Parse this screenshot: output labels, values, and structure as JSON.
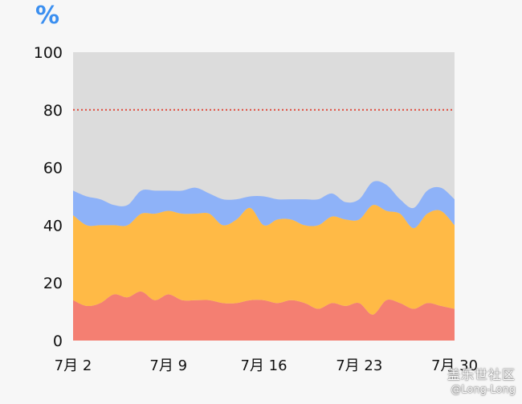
{
  "chart_data": {
    "type": "area",
    "stacked": true,
    "unit": "%",
    "ylim": [
      0,
      100
    ],
    "yticks": [
      0,
      20,
      40,
      60,
      80,
      100
    ],
    "x_tick_labels": [
      "7月 2",
      "7月 9",
      "7月 16",
      "7月 23",
      "7月 30"
    ],
    "x_tick_days": [
      2,
      9,
      16,
      23,
      30
    ],
    "x": [
      2,
      3,
      4,
      5,
      6,
      7,
      8,
      9,
      10,
      11,
      12,
      13,
      14,
      15,
      16,
      17,
      18,
      19,
      20,
      21,
      22,
      23,
      24,
      25,
      26,
      27,
      28,
      29,
      30
    ],
    "series": [
      {
        "values": [
          14,
          12,
          13,
          16,
          15,
          17,
          14,
          16,
          14,
          14,
          14,
          13,
          13,
          14,
          14,
          13,
          14,
          13,
          11,
          13,
          12,
          13,
          9,
          14,
          13,
          11,
          13,
          12,
          11
        ],
        "color": "#f47f72"
      },
      {
        "values": [
          29.5,
          28,
          27,
          24,
          25,
          27,
          30,
          29,
          30,
          30,
          30,
          27,
          29,
          32,
          26,
          29,
          28,
          27,
          29,
          30,
          30,
          29,
          38,
          31,
          31,
          28,
          31,
          33,
          29
        ],
        "color": "#ffba46"
      },
      {
        "values": [
          8.5,
          10,
          9,
          7,
          7,
          8,
          8,
          7,
          8,
          9,
          7,
          9,
          7,
          4,
          10,
          7,
          7,
          9,
          9,
          8,
          6,
          7,
          8,
          9,
          5,
          7,
          8,
          8,
          9
        ],
        "color": "#8eb2f8"
      }
    ],
    "reference_line": {
      "y": 80,
      "color": "#e04b3c",
      "style": "dotted"
    },
    "colors": {
      "plot_background": "#dcdcdc",
      "page_background": "#f7f7f7",
      "unit_label": "#3b8ff0",
      "axis_text": "#111111"
    }
  },
  "watermark": {
    "line1": "盖乐世社区",
    "line2": "@Long-Long"
  }
}
